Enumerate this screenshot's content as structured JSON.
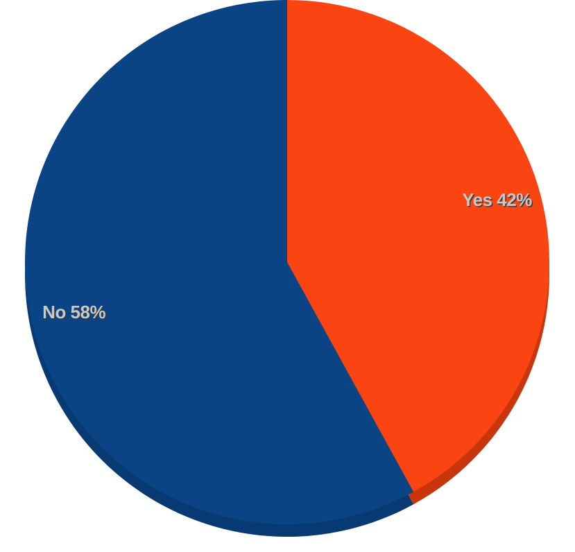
{
  "chart_data": {
    "type": "pie",
    "slices": [
      {
        "label": "Yes",
        "value": 42,
        "display": "Yes 42%",
        "color": "#fa4512",
        "edge_color": "#c9350c"
      },
      {
        "label": "No",
        "value": 58,
        "display": "No 58%",
        "color": "#0a4484",
        "edge_color": "#073a72"
      }
    ],
    "title": "",
    "legend": "none",
    "start_angle_deg": 0,
    "direction": "clockwise"
  }
}
